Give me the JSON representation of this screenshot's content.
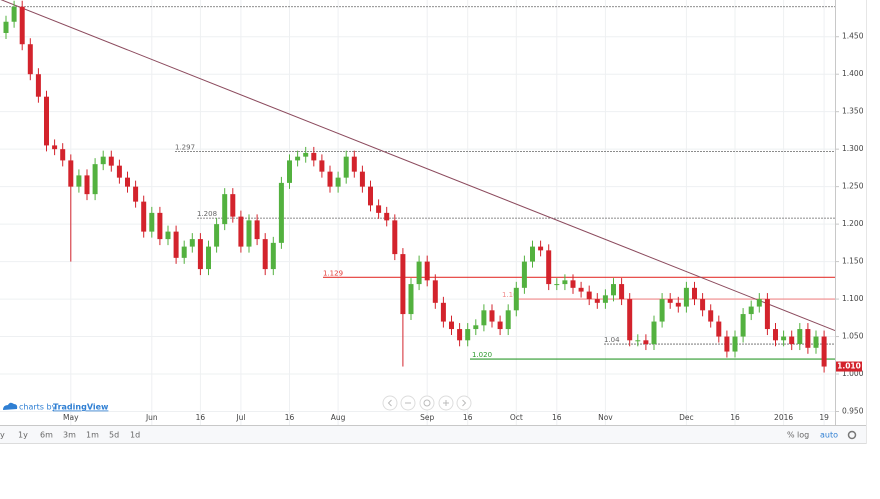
{
  "chart_data": {
    "type": "candlestick",
    "up_color": "#53b13f",
    "down_color": "#d3232c",
    "grid": true,
    "ylim": [
      0.932,
      1.499
    ],
    "yticks": [
      {
        "value": 0.95,
        "label": "0.950"
      },
      {
        "value": 1.0,
        "label": "1.000"
      },
      {
        "value": 1.05,
        "label": "1.050"
      },
      {
        "value": 1.1,
        "label": "1.100"
      },
      {
        "value": 1.15,
        "label": "1.150"
      },
      {
        "value": 1.2,
        "label": "1.200"
      },
      {
        "value": 1.25,
        "label": "1.250"
      },
      {
        "value": 1.3,
        "label": "1.300"
      },
      {
        "value": 1.35,
        "label": "1.350"
      },
      {
        "value": 1.4,
        "label": "1.400"
      },
      {
        "value": 1.45,
        "label": "1.450"
      }
    ],
    "categories": [
      null,
      null,
      null,
      null,
      null,
      null,
      null,
      null,
      "May",
      null,
      null,
      null,
      null,
      null,
      null,
      null,
      null,
      null,
      "Jun",
      null,
      null,
      null,
      null,
      null,
      "16",
      null,
      null,
      null,
      null,
      "Jul",
      null,
      null,
      null,
      null,
      null,
      "16",
      null,
      null,
      null,
      null,
      null,
      "Aug",
      null,
      null,
      null,
      null,
      null,
      null,
      null,
      null,
      null,
      null,
      "Sep",
      null,
      null,
      null,
      null,
      "16",
      null,
      null,
      null,
      null,
      null,
      "Oct",
      null,
      null,
      null,
      null,
      "16",
      null,
      null,
      null,
      null,
      null,
      "Nov",
      null,
      null,
      null,
      null,
      null,
      null,
      null,
      null,
      null,
      "Dec",
      null,
      null,
      null,
      null,
      null,
      "16",
      null,
      null,
      null,
      null,
      null,
      "2016",
      null,
      null,
      null,
      null,
      "19"
    ],
    "open": [
      1.455,
      1.47,
      1.49,
      1.44,
      1.4,
      1.37,
      1.305,
      1.3,
      1.285,
      1.25,
      1.265,
      1.24,
      1.28,
      1.29,
      1.278,
      1.262,
      1.25,
      1.23,
      1.19,
      1.215,
      1.18,
      1.19,
      1.155,
      1.17,
      1.18,
      1.14,
      1.17,
      1.2,
      1.24,
      1.21,
      1.17,
      1.205,
      1.18,
      1.14,
      1.175,
      1.255,
      1.285,
      1.29,
      1.295,
      1.285,
      1.27,
      1.25,
      1.262,
      1.29,
      1.27,
      1.25,
      1.225,
      1.215,
      1.205,
      1.16,
      1.08,
      1.12,
      1.15,
      1.125,
      1.095,
      1.07,
      1.06,
      1.045,
      1.06,
      1.065,
      1.085,
      1.07,
      1.06,
      1.085,
      1.115,
      1.15,
      1.17,
      1.165,
      1.12,
      1.12,
      1.125,
      1.115,
      1.11,
      1.1,
      1.095,
      1.105,
      1.12,
      1.1,
      1.045,
      1.045,
      1.04,
      1.07,
      1.1,
      1.095,
      1.09,
      1.115,
      1.1,
      1.085,
      1.07,
      1.05,
      1.03,
      1.05,
      1.08,
      1.09,
      1.1,
      1.06,
      1.045,
      1.05,
      1.04,
      1.06,
      1.035,
      1.05
    ],
    "high": [
      1.478,
      1.498,
      1.498,
      1.448,
      1.408,
      1.378,
      1.313,
      1.308,
      1.293,
      1.273,
      1.273,
      1.288,
      1.298,
      1.298,
      1.286,
      1.27,
      1.258,
      1.238,
      1.223,
      1.223,
      1.198,
      1.198,
      1.178,
      1.188,
      1.188,
      1.178,
      1.208,
      1.248,
      1.248,
      1.218,
      1.213,
      1.213,
      1.188,
      1.183,
      1.263,
      1.293,
      1.298,
      1.303,
      1.303,
      1.293,
      1.278,
      1.27,
      1.298,
      1.298,
      1.278,
      1.258,
      1.233,
      1.223,
      1.213,
      1.168,
      1.128,
      1.158,
      1.158,
      1.133,
      1.103,
      1.078,
      1.068,
      1.068,
      1.073,
      1.093,
      1.093,
      1.078,
      1.093,
      1.123,
      1.158,
      1.178,
      1.178,
      1.173,
      1.128,
      1.133,
      1.133,
      1.123,
      1.118,
      1.108,
      1.113,
      1.128,
      1.128,
      1.108,
      1.053,
      1.053,
      1.078,
      1.108,
      1.108,
      1.103,
      1.123,
      1.123,
      1.108,
      1.093,
      1.078,
      1.058,
      1.058,
      1.088,
      1.098,
      1.108,
      1.108,
      1.068,
      1.058,
      1.058,
      1.068,
      1.068,
      1.058,
      1.058
    ],
    "low": [
      1.447,
      1.462,
      1.432,
      1.392,
      1.362,
      1.297,
      1.292,
      1.277,
      1.15,
      1.242,
      1.232,
      1.232,
      1.272,
      1.27,
      1.254,
      1.242,
      1.222,
      1.182,
      1.182,
      1.172,
      1.172,
      1.147,
      1.147,
      1.162,
      1.132,
      1.132,
      1.162,
      1.192,
      1.202,
      1.162,
      1.162,
      1.172,
      1.132,
      1.132,
      1.167,
      1.247,
      1.277,
      1.282,
      1.277,
      1.262,
      1.242,
      1.242,
      1.254,
      1.262,
      1.242,
      1.217,
      1.207,
      1.197,
      1.152,
      1.01,
      1.072,
      1.112,
      1.117,
      1.087,
      1.062,
      1.052,
      1.037,
      1.037,
      1.052,
      1.057,
      1.062,
      1.052,
      1.052,
      1.077,
      1.107,
      1.142,
      1.157,
      1.112,
      1.112,
      1.112,
      1.107,
      1.102,
      1.092,
      1.087,
      1.087,
      1.097,
      1.092,
      1.037,
      1.037,
      1.032,
      1.032,
      1.062,
      1.087,
      1.082,
      1.082,
      1.092,
      1.077,
      1.062,
      1.042,
      1.022,
      1.022,
      1.042,
      1.072,
      1.082,
      1.052,
      1.037,
      1.037,
      1.032,
      1.032,
      1.027,
      1.027,
      1.002
    ],
    "close": [
      1.47,
      1.49,
      1.44,
      1.4,
      1.37,
      1.305,
      1.3,
      1.285,
      1.25,
      1.265,
      1.24,
      1.28,
      1.29,
      1.278,
      1.262,
      1.25,
      1.23,
      1.19,
      1.215,
      1.18,
      1.19,
      1.155,
      1.17,
      1.18,
      1.14,
      1.17,
      1.2,
      1.24,
      1.21,
      1.17,
      1.205,
      1.18,
      1.14,
      1.175,
      1.255,
      1.285,
      1.29,
      1.295,
      1.285,
      1.27,
      1.25,
      1.262,
      1.29,
      1.27,
      1.25,
      1.225,
      1.215,
      1.205,
      1.16,
      1.08,
      1.12,
      1.15,
      1.125,
      1.095,
      1.07,
      1.06,
      1.045,
      1.06,
      1.065,
      1.085,
      1.07,
      1.06,
      1.085,
      1.115,
      1.15,
      1.17,
      1.165,
      1.12,
      1.12,
      1.125,
      1.115,
      1.11,
      1.1,
      1.095,
      1.105,
      1.12,
      1.1,
      1.045,
      1.045,
      1.04,
      1.07,
      1.1,
      1.095,
      1.09,
      1.115,
      1.1,
      1.085,
      1.07,
      1.05,
      1.03,
      1.05,
      1.08,
      1.09,
      1.1,
      1.06,
      1.045,
      1.05,
      1.04,
      1.06,
      1.035,
      1.05,
      1.01
    ],
    "levels": [
      {
        "value": 1.49,
        "color": "#666666",
        "style": "dotted"
      },
      {
        "value": 1.297,
        "label": "1.297",
        "color": "#666666",
        "style": "dotted"
      },
      {
        "value": 1.208,
        "label": "1.208",
        "color": "#666666",
        "style": "dotted"
      },
      {
        "value": 1.129,
        "label": "1.129",
        "color": "#e53935",
        "style": "solid"
      },
      {
        "value": 1.1,
        "label": "1.10",
        "color": "#f08a8a",
        "style": "solid"
      },
      {
        "value": 1.04,
        "label": "1.04",
        "color": "#666666",
        "style": "dotted"
      },
      {
        "value": 1.02,
        "label": "1.020",
        "color": "#2e9a2e",
        "style": "solid"
      }
    ],
    "trendline": {
      "values": [
        1.5,
        1.058
      ],
      "color": "#8c4b5e"
    },
    "last_price": {
      "value": 1.01,
      "label": "1.010",
      "color": "#d3232c"
    }
  },
  "ui": {
    "brand_prefix": "charts by",
    "brand": "TradingView",
    "ranges": [
      "y",
      "1y",
      "6m",
      "3m",
      "1m",
      "5d",
      "1d"
    ],
    "percent": "%",
    "log": "log",
    "auto": "auto"
  }
}
